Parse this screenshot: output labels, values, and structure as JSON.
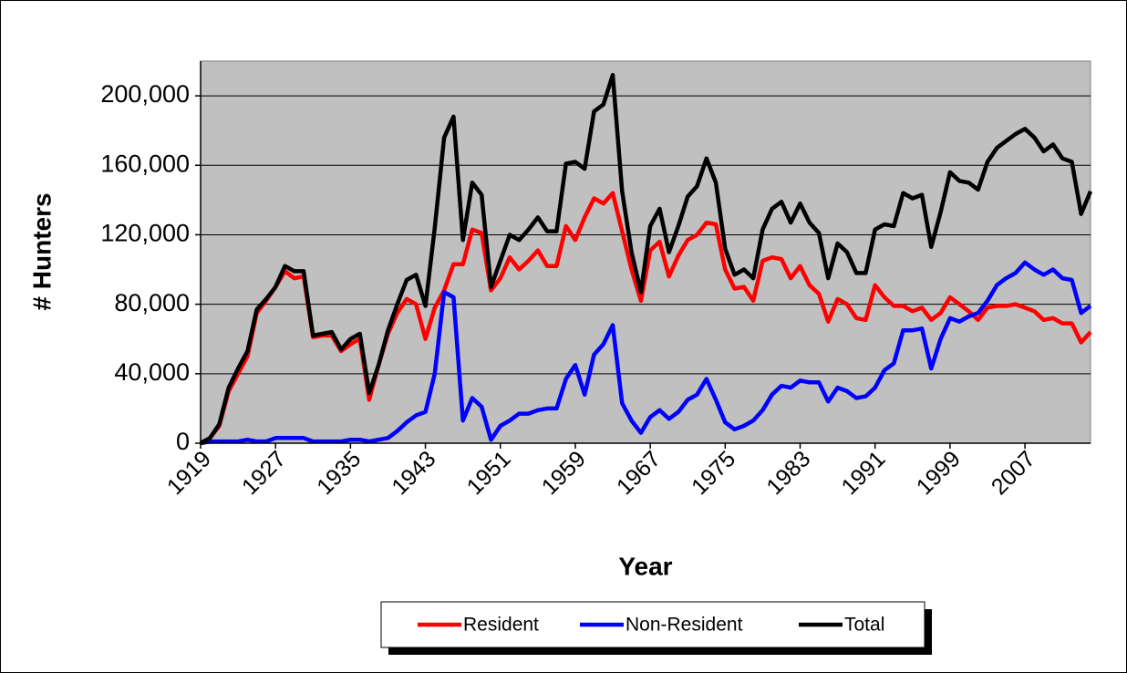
{
  "chart_data": {
    "type": "line",
    "xlabel": "Year",
    "ylabel": "# Hunters",
    "x": [
      1919,
      1920,
      1921,
      1922,
      1923,
      1924,
      1925,
      1926,
      1927,
      1928,
      1929,
      1930,
      1931,
      1932,
      1933,
      1934,
      1935,
      1936,
      1937,
      1938,
      1939,
      1940,
      1941,
      1942,
      1943,
      1944,
      1945,
      1946,
      1947,
      1948,
      1949,
      1950,
      1951,
      1952,
      1953,
      1954,
      1955,
      1956,
      1957,
      1958,
      1959,
      1960,
      1961,
      1962,
      1963,
      1964,
      1965,
      1966,
      1967,
      1968,
      1969,
      1970,
      1971,
      1972,
      1973,
      1974,
      1975,
      1976,
      1977,
      1978,
      1979,
      1980,
      1981,
      1982,
      1983,
      1984,
      1985,
      1986,
      1987,
      1988,
      1989,
      1990,
      1991,
      1992,
      1993,
      1994,
      1995,
      1996,
      1997,
      1998,
      1999,
      2000,
      2001,
      2002,
      2003,
      2004,
      2005,
      2006,
      2007,
      2008,
      2009,
      2010,
      2011,
      2012,
      2013,
      2014
    ],
    "xlim": [
      1919,
      2014
    ],
    "xticks": [
      1919,
      1927,
      1935,
      1943,
      1951,
      1959,
      1967,
      1975,
      1983,
      1991,
      1999,
      2007
    ],
    "ylim": [
      0,
      220000
    ],
    "yticks": [
      0,
      {
        "value": 40000,
        "label": "40,000"
      },
      {
        "value": 80000,
        "label": "80,000"
      },
      {
        "value": 120000,
        "label": "120,000"
      },
      {
        "value": 160000,
        "label": "160,000"
      },
      {
        "value": 200000,
        "label": "200,000"
      }
    ],
    "grid": true,
    "legend": "bottom",
    "series": [
      {
        "name": "Resident",
        "color": "#ff0000",
        "values": [
          0,
          3000,
          10000,
          30000,
          40000,
          50000,
          75000,
          82000,
          90000,
          99000,
          95000,
          96000,
          61000,
          62000,
          62000,
          53000,
          57000,
          60000,
          25000,
          45000,
          63000,
          75000,
          83000,
          80000,
          60000,
          78000,
          88000,
          103000,
          103000,
          123000,
          121000,
          88000,
          95000,
          107000,
          100000,
          105000,
          111000,
          102000,
          102000,
          125000,
          117000,
          130000,
          141000,
          138000,
          144000,
          122000,
          100000,
          82000,
          111000,
          116000,
          96000,
          108000,
          117000,
          120000,
          127000,
          126000,
          100000,
          89000,
          90000,
          82000,
          105000,
          107000,
          106000,
          95000,
          102000,
          91000,
          86000,
          70000,
          83000,
          80000,
          72000,
          71000,
          91000,
          84000,
          79000,
          79000,
          76000,
          78000,
          71000,
          75000,
          84000,
          80000,
          76000,
          71000,
          78000,
          79000,
          79000,
          80000,
          78000,
          76000,
          71000,
          72000,
          69000,
          69000,
          58000,
          64000
        ]
      },
      {
        "name": "Non-Resident",
        "color": "#0000ff",
        "values": [
          0,
          1000,
          1000,
          1000,
          1000,
          2000,
          1000,
          1000,
          3000,
          3000,
          3000,
          3000,
          1000,
          1000,
          1000,
          1000,
          2000,
          2000,
          1000,
          2000,
          3000,
          7000,
          12000,
          16000,
          18000,
          40000,
          87000,
          84000,
          13000,
          26000,
          21000,
          2000,
          10000,
          13000,
          17000,
          17000,
          19000,
          20000,
          20000,
          37000,
          45000,
          28000,
          51000,
          57000,
          68000,
          23000,
          13000,
          6000,
          15000,
          19000,
          14000,
          18000,
          25000,
          28000,
          37000,
          25000,
          12000,
          8000,
          10000,
          13000,
          19000,
          28000,
          33000,
          32000,
          36000,
          35000,
          35000,
          24000,
          32000,
          30000,
          26000,
          27000,
          32000,
          42000,
          46000,
          65000,
          65000,
          66000,
          43000,
          60000,
          72000,
          70000,
          73000,
          75000,
          82000,
          91000,
          95000,
          98000,
          104000,
          100000,
          97000,
          100000,
          95000,
          94000,
          75000,
          79000
        ]
      },
      {
        "name": "Total",
        "color": "#000000",
        "values": [
          0,
          3000,
          11000,
          32000,
          43000,
          53000,
          77000,
          83000,
          90000,
          102000,
          99000,
          99000,
          62000,
          63000,
          64000,
          54000,
          60000,
          63000,
          29000,
          45000,
          65000,
          80000,
          94000,
          97000,
          79000,
          124000,
          176000,
          188000,
          117000,
          150000,
          143000,
          90000,
          105000,
          120000,
          117000,
          123000,
          130000,
          122000,
          122000,
          161000,
          162000,
          158000,
          191000,
          195000,
          212000,
          145000,
          110000,
          87000,
          125000,
          135000,
          110000,
          125000,
          142000,
          148000,
          164000,
          150000,
          112000,
          97000,
          100000,
          95000,
          123000,
          135000,
          139000,
          127000,
          138000,
          127000,
          121000,
          95000,
          115000,
          110000,
          98000,
          98000,
          123000,
          126000,
          125000,
          144000,
          141000,
          143000,
          113000,
          133000,
          156000,
          151000,
          150000,
          146000,
          162000,
          170000,
          174000,
          178000,
          181000,
          176000,
          168000,
          172000,
          164000,
          162000,
          132000,
          145000
        ]
      }
    ]
  }
}
